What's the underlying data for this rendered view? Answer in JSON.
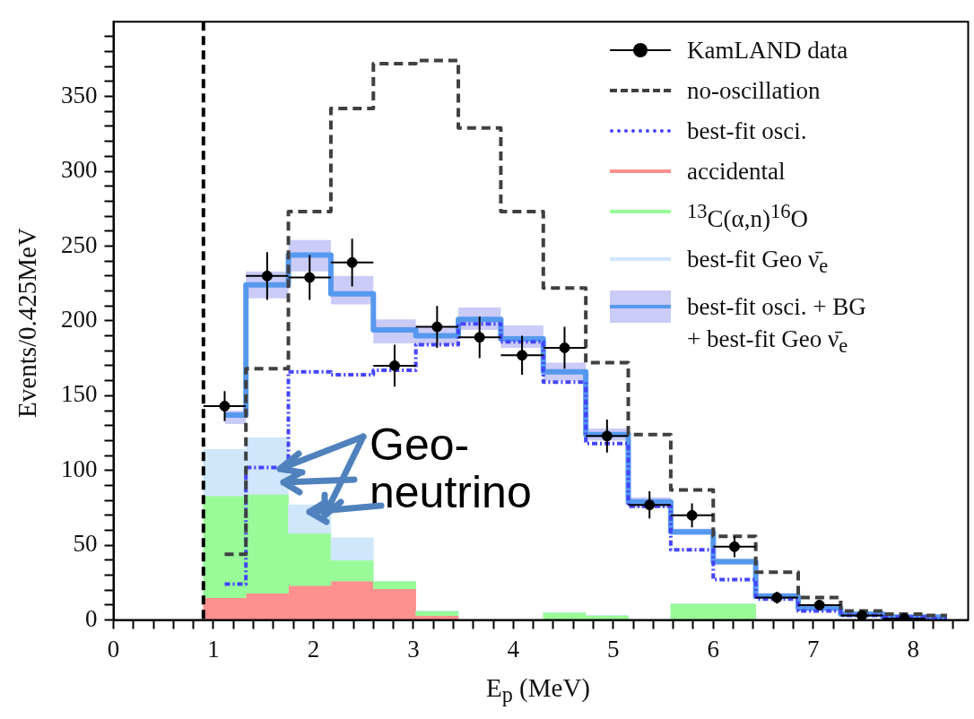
{
  "chart_data": {
    "type": "bar",
    "xlabel": "E$_{p}$ (MeV)",
    "ylabel": "Events/0.425MeV",
    "annotations": [
      "Geo-neutrino"
    ],
    "x": [
      1.1125,
      1.5375,
      1.9625,
      2.3875,
      2.8125,
      3.2375,
      3.6625,
      4.0875,
      4.5125,
      4.9375,
      5.3625,
      5.7875,
      6.2125,
      6.6375,
      7.0625,
      7.4875,
      7.9125,
      8.3375
    ],
    "stacked": true,
    "legend": "top right",
    "grid": false,
    "xlim": [
      0,
      8.55
    ],
    "xticks": [
      0,
      {
        "value": 0.2,
        "label": null
      },
      {
        "value": 0.4,
        "label": null
      },
      {
        "value": 0.6,
        "label": null
      },
      {
        "value": 0.8,
        "label": null
      },
      1,
      {
        "value": 1.2,
        "label": null
      },
      {
        "value": 1.4,
        "label": null
      },
      {
        "value": 1.6,
        "label": null
      },
      {
        "value": 1.8,
        "label": null
      },
      2,
      {
        "value": 2.2,
        "label": null
      },
      {
        "value": 2.4,
        "label": null
      },
      {
        "value": 2.6,
        "label": null
      },
      {
        "value": 2.8,
        "label": null
      },
      3,
      {
        "value": 3.2,
        "label": null
      },
      {
        "value": 3.4,
        "label": null
      },
      {
        "value": 3.6,
        "label": null
      },
      {
        "value": 3.8,
        "label": null
      },
      4,
      {
        "value": 4.2,
        "label": null
      },
      {
        "value": 4.4,
        "label": null
      },
      {
        "value": 4.6,
        "label": null
      },
      {
        "value": 4.8,
        "label": null
      },
      5,
      {
        "value": 5.2,
        "label": null
      },
      {
        "value": 5.4,
        "label": null
      },
      {
        "value": 5.6,
        "label": null
      },
      {
        "value": 5.8,
        "label": null
      },
      6,
      {
        "value": 6.2,
        "label": null
      },
      {
        "value": 6.4,
        "label": null
      },
      {
        "value": 6.6,
        "label": null
      },
      {
        "value": 6.8,
        "label": null
      },
      7,
      {
        "value": 7.2,
        "label": null
      },
      {
        "value": 7.4,
        "label": null
      },
      {
        "value": 7.6,
        "label": null
      },
      {
        "value": 7.8,
        "label": null
      },
      8,
      {
        "value": 8.2,
        "label": null
      },
      {
        "value": 8.4,
        "label": null
      }
    ],
    "ylim": [
      0,
      400
    ],
    "yticks": [
      0,
      {
        "value": 10,
        "label": null
      },
      {
        "value": 20,
        "label": null
      },
      {
        "value": 30,
        "label": null
      },
      {
        "value": 40,
        "label": null
      },
      50,
      {
        "value": 60,
        "label": null
      },
      {
        "value": 70,
        "label": null
      },
      {
        "value": 80,
        "label": null
      },
      {
        "value": 90,
        "label": null
      },
      100,
      {
        "value": 110,
        "label": null
      },
      {
        "value": 120,
        "label": null
      },
      {
        "value": 130,
        "label": null
      },
      {
        "value": 140,
        "label": null
      },
      150,
      {
        "value": 160,
        "label": null
      },
      {
        "value": 170,
        "label": null
      },
      {
        "value": 180,
        "label": null
      },
      {
        "value": 190,
        "label": null
      },
      200,
      {
        "value": 210,
        "label": null
      },
      {
        "value": 220,
        "label": null
      },
      {
        "value": 230,
        "label": null
      },
      {
        "value": 240,
        "label": null
      },
      250,
      {
        "value": 260,
        "label": null
      },
      {
        "value": 270,
        "label": null
      },
      {
        "value": 280,
        "label": null
      },
      {
        "value": 290,
        "label": null
      },
      300,
      {
        "value": 310,
        "label": null
      },
      {
        "value": 320,
        "label": null
      },
      {
        "value": 330,
        "label": null
      },
      {
        "value": 340,
        "label": null
      },
      350,
      {
        "value": 360,
        "label": null
      },
      {
        "value": 370,
        "label": null
      },
      {
        "value": 380,
        "label": null
      },
      {
        "value": 390,
        "label": null
      }
    ],
    "ref_lines": [
      {
        "axis": "x",
        "value": 0.9,
        "color": "#000000",
        "line_style": "dashed"
      }
    ],
    "series": [
      {
        "name": "KamLAND data",
        "type": "scatter",
        "marker": "circle",
        "color": "#000000",
        "x": [
          1.1125,
          1.5375,
          1.9625,
          2.3875,
          2.8125,
          3.2375,
          3.6625,
          4.0875,
          4.5125,
          4.9375,
          5.3625,
          5.7875,
          6.2125,
          6.6375,
          7.0625,
          7.4875,
          7.9125
        ],
        "values": [
          143,
          230,
          229,
          239,
          170,
          196,
          189,
          177,
          182,
          123,
          77,
          70,
          49,
          15,
          10,
          3,
          1
        ],
        "errors": [
          10,
          16,
          15,
          16,
          14,
          14,
          14,
          13,
          14,
          11,
          9,
          8,
          7,
          4,
          3,
          null,
          null
        ],
        "xerrors": [
          0.2125,
          0.2125,
          0.2125,
          0.2125,
          0.2125,
          0.2125,
          0.2125,
          0.2125,
          0.2125,
          0.2125,
          0.2125,
          0.2125,
          0.2125,
          0.2125,
          0.2125,
          0.2125,
          0.2125
        ]
      },
      {
        "name": "no-oscillation",
        "type": "step",
        "line_style": "dashed",
        "color": "#404040",
        "values": [
          44,
          168,
          273,
          342,
          372,
          374,
          329,
          273,
          222,
          172,
          124,
          87,
          56,
          32,
          15,
          6,
          4,
          3
        ]
      },
      {
        "name": "best-fit osci.",
        "type": "step",
        "line_style": "dotted",
        "color": "#4444ff",
        "values": [
          24,
          102,
          166,
          164,
          167,
          184,
          198,
          186,
          159,
          118,
          76,
          47,
          27,
          14,
          6,
          3,
          2,
          1
        ]
      },
      {
        "name": "accidental",
        "color": "#ff9090",
        "values": [
          15,
          18,
          23,
          26,
          21,
          3,
          null,
          null,
          null,
          null,
          null,
          null,
          null,
          null,
          null,
          null,
          null,
          null
        ]
      },
      {
        "name": "$^{13}$C(α,n)$^{16}$O",
        "color": "#98fb98",
        "values": [
          68,
          66,
          35,
          14,
          5,
          3,
          0,
          0,
          5,
          3,
          0,
          11,
          11,
          0,
          0,
          0,
          0,
          0
        ]
      },
      {
        "name": "best-fit Geo ν̄$_{e}$",
        "color": "#cfe6fb",
        "values": [
          31,
          38,
          19,
          15,
          0,
          0,
          0,
          0,
          0,
          0,
          0,
          0,
          0,
          0,
          0,
          0,
          0,
          0
        ]
      },
      {
        "name": "best-fit osci. + BG + best-fit Geo ν̄$_{e}$",
        "type": "step",
        "line_style": "solid",
        "color": "#5599ee",
        "values": [
          137,
          224,
          244,
          218,
          194,
          190,
          201,
          188,
          166,
          124,
          79,
          59,
          39,
          16,
          8,
          4,
          2,
          2
        ],
        "lower": [
          131,
          215,
          233,
          211,
          185,
          184,
          194,
          182,
          160,
          120,
          75,
          57,
          37,
          14,
          6,
          3,
          1,
          1
        ],
        "upper": [
          140,
          233,
          254,
          230,
          201,
          196,
          209,
          197,
          172,
          128,
          82,
          61,
          41,
          18,
          10,
          5,
          3,
          3
        ]
      }
    ]
  }
}
